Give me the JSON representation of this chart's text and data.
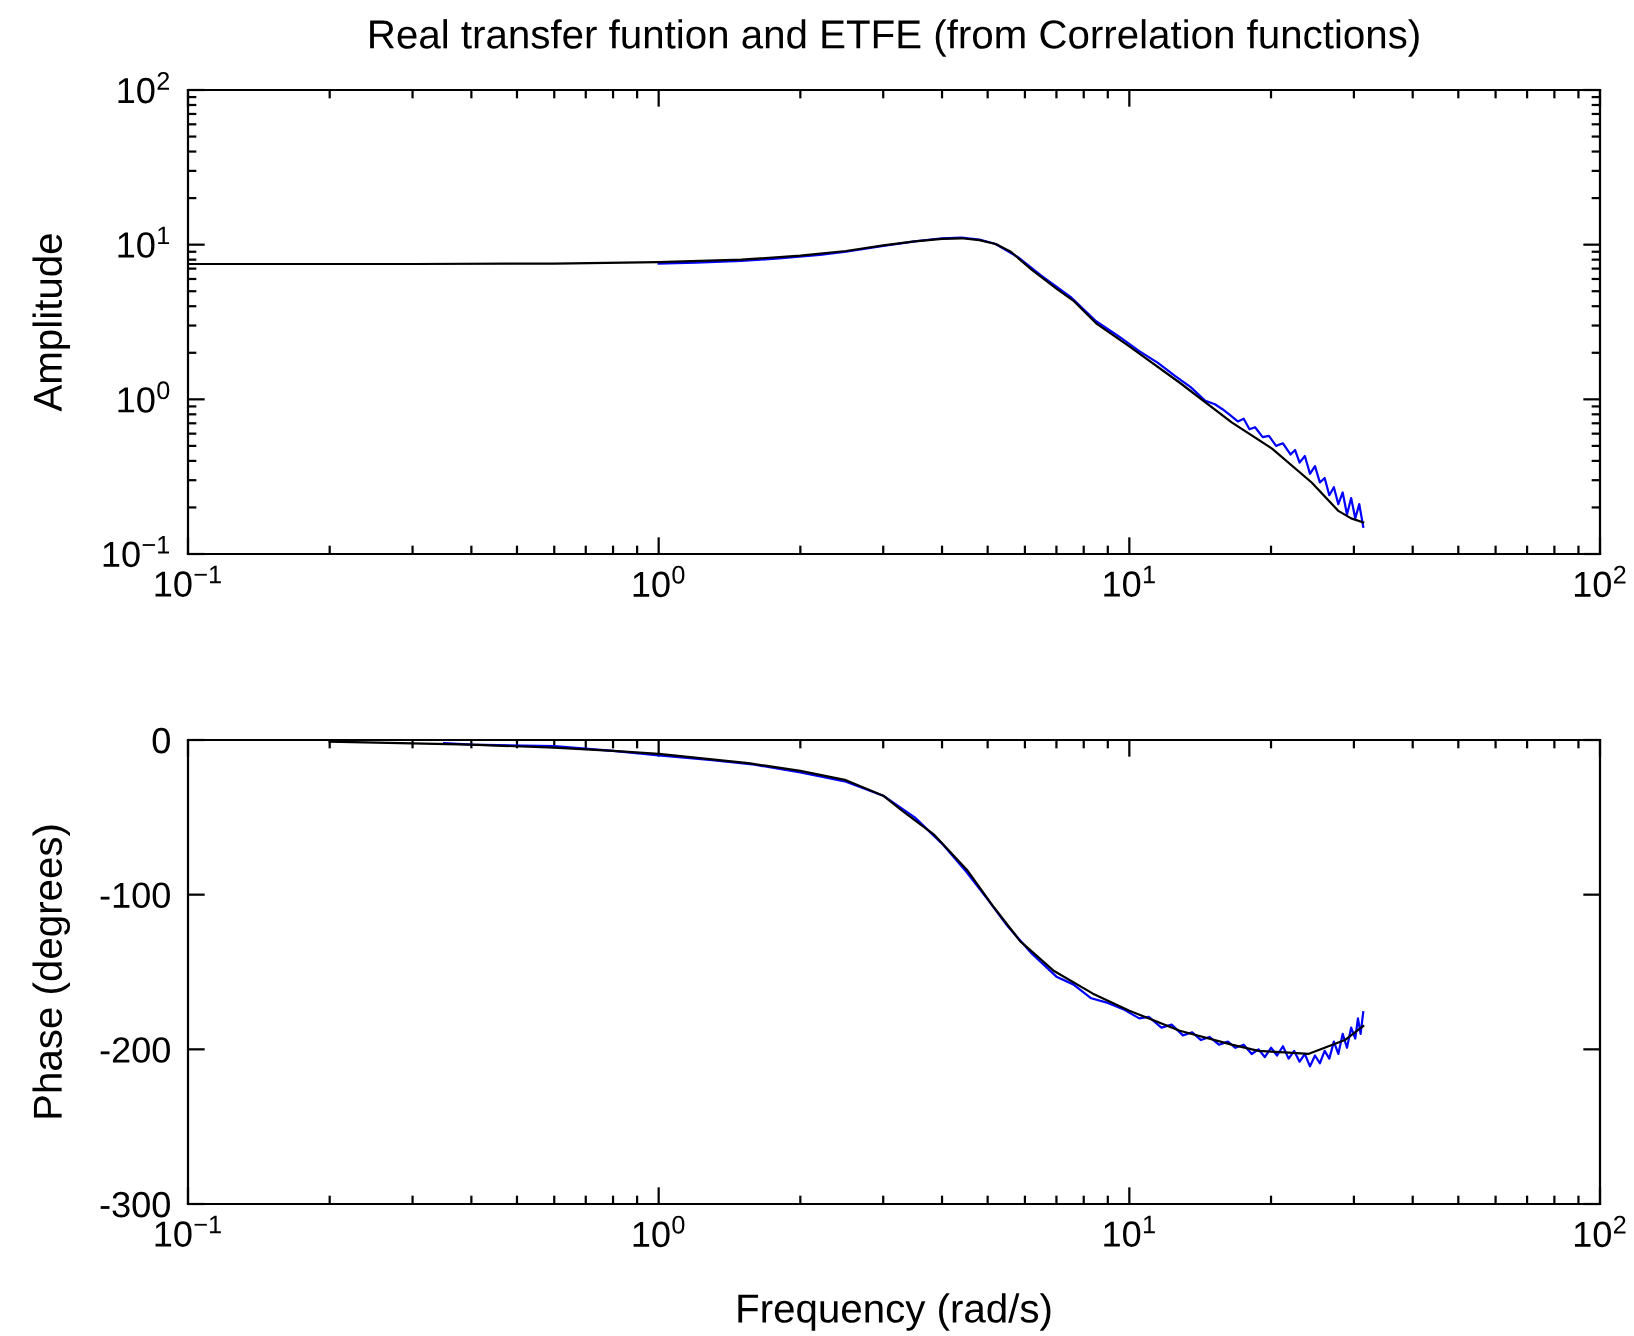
{
  "chart_data": [
    {
      "type": "line",
      "title": "Real transfer funtion and ETFE (from Correlation functions)",
      "ylabel": "Amplitude",
      "log": "xy",
      "xlim": [
        0.1,
        100
      ],
      "ylim": [
        0.1,
        100
      ],
      "xticks": [
        {
          "value": 0.1,
          "label": "10$^{−1}$"
        },
        {
          "value": 1,
          "label": "10$^{0}$"
        },
        {
          "value": 10,
          "label": "10$^{1}$"
        },
        {
          "value": 100,
          "label": "10$^{2}$"
        }
      ],
      "yticks": [
        {
          "value": 0.1,
          "label": "10$^{−1}$"
        },
        {
          "value": 1,
          "label": "10$^{0}$"
        },
        {
          "value": 10,
          "label": "10$^{1}$"
        },
        {
          "value": 100,
          "label": "10$^{2}$"
        }
      ],
      "series": [
        {
          "color": "#0000ff",
          "x": [
            1.0,
            1.2,
            1.5,
            1.8,
            2.2,
            2.5,
            3.0,
            3.5,
            4.0,
            4.4,
            4.8,
            5.2,
            5.8,
            6.5,
            7.5,
            8.5,
            9.5,
            10.5,
            11.5,
            12.5,
            13.5,
            14.5,
            15.2,
            15.8,
            16.3,
            17.0,
            17.5,
            18.0,
            18.5,
            19.2,
            19.8,
            20.5,
            21.2,
            22.0,
            22.5,
            23.0,
            23.6,
            24.2,
            24.8,
            25.4,
            26.0,
            26.6,
            27.2,
            27.8,
            28.4,
            29.0,
            29.6,
            30.2,
            30.8,
            31.4
          ],
          "values": [
            7.55,
            7.65,
            7.85,
            8.15,
            8.6,
            9.0,
            9.8,
            10.5,
            11.0,
            11.1,
            10.8,
            10.1,
            8.3,
            6.3,
            4.6,
            3.2,
            2.55,
            2.05,
            1.72,
            1.42,
            1.2,
            0.98,
            0.93,
            0.86,
            0.8,
            0.72,
            0.75,
            0.64,
            0.66,
            0.57,
            0.58,
            0.5,
            0.52,
            0.44,
            0.47,
            0.39,
            0.43,
            0.33,
            0.37,
            0.29,
            0.31,
            0.24,
            0.27,
            0.21,
            0.25,
            0.18,
            0.23,
            0.17,
            0.21,
            0.15
          ]
        },
        {
          "color": "#000000",
          "x": [
            0.1,
            0.3,
            0.6,
            1.0,
            1.5,
            2.0,
            2.5,
            3.0,
            3.5,
            4.0,
            4.4,
            4.8,
            5.2,
            5.6,
            6.2,
            7.0,
            7.6,
            8.5,
            10,
            12.8,
            16.5,
            20.1,
            24.4,
            27.8,
            29.6,
            31.4
          ],
          "values": [
            7.5,
            7.5,
            7.55,
            7.7,
            8.0,
            8.5,
            9.1,
            9.9,
            10.5,
            10.9,
            11.0,
            10.7,
            10.1,
            9.0,
            6.9,
            5.2,
            4.35,
            3.1,
            2.2,
            1.28,
            0.71,
            0.48,
            0.29,
            0.19,
            0.17,
            0.16
          ]
        }
      ]
    },
    {
      "type": "line",
      "xlabel": "Frequency (rad/s)",
      "ylabel": "Phase (degrees)",
      "log": "x",
      "xlim": [
        0.1,
        100
      ],
      "ylim": [
        -300,
        0
      ],
      "xticks": [
        {
          "value": 0.1,
          "label": "10$^{−1}$"
        },
        {
          "value": 1,
          "label": "10$^{0}$"
        },
        {
          "value": 10,
          "label": "10$^{1}$"
        },
        {
          "value": 100,
          "label": "10$^{2}$"
        }
      ],
      "yticks": [
        -300,
        -200,
        -100,
        0
      ],
      "series": [
        {
          "color": "#0000ff",
          "x": [
            0.35,
            0.4,
            0.6,
            0.8,
            1.0,
            1.3,
            1.6,
            2.0,
            2.5,
            3.0,
            3.5,
            4.0,
            4.5,
            5.0,
            5.5,
            6.2,
            7.0,
            7.6,
            8.3,
            9.0,
            9.7,
            10.5,
            11.0,
            11.7,
            12.3,
            13.0,
            13.6,
            14.2,
            14.8,
            15.5,
            16.2,
            16.8,
            17.5,
            18.2,
            18.8,
            19.4,
            20.0,
            20.6,
            21.2,
            21.8,
            22.4,
            23.0,
            23.6,
            24.2,
            24.8,
            25.4,
            26.0,
            26.6,
            27.2,
            27.8,
            28.4,
            29.0,
            29.6,
            30.2,
            30.6,
            31.0,
            31.4
          ],
          "values": [
            -2,
            -3,
            -4,
            -7,
            -10,
            -13,
            -16,
            -21,
            -27,
            -36,
            -50,
            -67,
            -85,
            -103,
            -120,
            -138,
            -153,
            -158,
            -167,
            -170,
            -174,
            -180,
            -179,
            -186,
            -184,
            -191,
            -189,
            -194,
            -192,
            -197,
            -195,
            -199,
            -197,
            -203,
            -200,
            -205,
            -199,
            -204,
            -198,
            -206,
            -201,
            -208,
            -203,
            -211,
            -204,
            -209,
            -201,
            -206,
            -195,
            -203,
            -190,
            -199,
            -186,
            -193,
            -180,
            -190,
            -176
          ]
        },
        {
          "color": "#000000",
          "x": [
            0.2,
            0.4,
            0.6,
            0.8,
            1.0,
            1.55,
            2.0,
            2.5,
            3.0,
            3.3,
            3.84,
            4.52,
            5.15,
            5.86,
            6.89,
            8.37,
            10,
            12.8,
            16.5,
            18.8,
            21.4,
            24.0,
            26.0,
            28.7,
            31.4
          ],
          "values": [
            -1,
            -3,
            -5,
            -7,
            -9,
            -15,
            -20,
            -26,
            -36,
            -46,
            -61,
            -84,
            -108,
            -130,
            -149,
            -164,
            -175,
            -188,
            -197,
            -201,
            -202,
            -203,
            -199,
            -194,
            -185
          ]
        }
      ]
    }
  ]
}
